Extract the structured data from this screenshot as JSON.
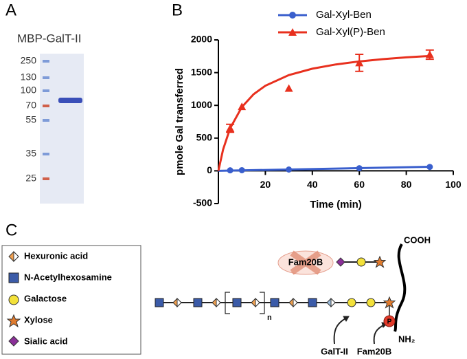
{
  "panel_a": {
    "letter": "A",
    "title": "MBP-GalT-II",
    "markers": [
      250,
      130,
      100,
      70,
      55,
      35,
      25
    ]
  },
  "chart_data": {
    "type": "line",
    "letter": "B",
    "x_label": "Time (min)",
    "y_label": "pmole Gal transferred",
    "xlim": [
      0,
      100
    ],
    "ylim": [
      -500,
      2000
    ],
    "xticks": [
      20,
      40,
      60,
      80,
      100
    ],
    "yticks": [
      -500,
      0,
      500,
      1000,
      1500,
      2000
    ],
    "x": [
      5,
      10,
      30,
      60,
      90
    ],
    "series": [
      {
        "name": "Gal-Xyl-Ben",
        "color": "#3a5fcd",
        "marker": "circle",
        "values": [
          8,
          10,
          20,
          40,
          60
        ],
        "errors": [
          0,
          0,
          0,
          0,
          0
        ],
        "fit": {
          "x": [
            0,
            90
          ],
          "values": [
            0,
            62
          ]
        }
      },
      {
        "name": "Gal-Xyl(P)-Ben",
        "color": "#e8301e",
        "marker": "triangle",
        "values": [
          650,
          980,
          1260,
          1650,
          1775
        ],
        "errors": [
          60,
          0,
          0,
          130,
          70
        ],
        "fit": {
          "x": [
            0,
            2,
            5,
            10,
            15,
            20,
            30,
            40,
            50,
            60,
            70,
            80,
            90
          ],
          "values": [
            0,
            325,
            650,
            975,
            1170,
            1300,
            1463,
            1560,
            1625,
            1671,
            1706,
            1733,
            1755
          ]
        }
      }
    ]
  },
  "panel_c": {
    "letter": "C",
    "legend": [
      "Hexuronic acid",
      "N-Acetylhexosamine",
      "Galactose",
      "Xylose",
      "Sialic acid"
    ],
    "repeat": "n",
    "blocked_enzyme": "Fam20B",
    "c_terminus": "COOH",
    "n_terminus": "NH₂",
    "phosphate": "P",
    "arrow_labels": [
      "GalT-II",
      "Fam20B"
    ]
  }
}
